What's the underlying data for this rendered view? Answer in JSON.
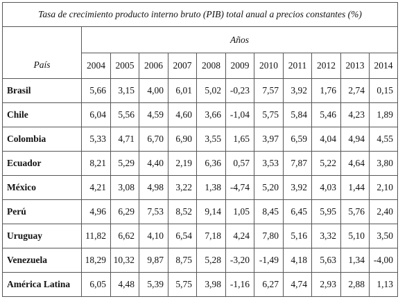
{
  "table": {
    "title": "Tasa de crecimiento producto interno bruto (PIB) total anual a precios constantes (%)",
    "group_header": "Años",
    "row_header": "País",
    "years": [
      "2004",
      "2005",
      "2006",
      "2007",
      "2008",
      "2009",
      "2010",
      "2011",
      "2012",
      "2013",
      "2014"
    ],
    "rows": [
      {
        "country": "Brasil",
        "values": [
          "5,66",
          "3,15",
          "4,00",
          "6,01",
          "5,02",
          "-0,23",
          "7,57",
          "3,92",
          "1,76",
          "2,74",
          "0,15"
        ]
      },
      {
        "country": "Chile",
        "values": [
          "6,04",
          "5,56",
          "4,59",
          "4,60",
          "3,66",
          "-1,04",
          "5,75",
          "5,84",
          "5,46",
          "4,23",
          "1,89"
        ]
      },
      {
        "country": "Colombia",
        "values": [
          "5,33",
          "4,71",
          "6,70",
          "6,90",
          "3,55",
          "1,65",
          "3,97",
          "6,59",
          "4,04",
          "4,94",
          "4,55"
        ]
      },
      {
        "country": "Ecuador",
        "values": [
          "8,21",
          "5,29",
          "4,40",
          "2,19",
          "6,36",
          "0,57",
          "3,53",
          "7,87",
          "5,22",
          "4,64",
          "3,80"
        ]
      },
      {
        "country": "México",
        "values": [
          "4,21",
          "3,08",
          "4,98",
          "3,22",
          "1,38",
          "-4,74",
          "5,20",
          "3,92",
          "4,03",
          "1,44",
          "2,10"
        ]
      },
      {
        "country": "Perú",
        "values": [
          "4,96",
          "6,29",
          "7,53",
          "8,52",
          "9,14",
          "1,05",
          "8,45",
          "6,45",
          "5,95",
          "5,76",
          "2,40"
        ]
      },
      {
        "country": "Uruguay",
        "values": [
          "11,82",
          "6,62",
          "4,10",
          "6,54",
          "7,18",
          "4,24",
          "7,80",
          "5,16",
          "3,32",
          "5,10",
          "3,50"
        ]
      },
      {
        "country": "Venezuela",
        "values": [
          "18,29",
          "10,32",
          "9,87",
          "8,75",
          "5,28",
          "-3,20",
          "-1,49",
          "4,18",
          "5,63",
          "1,34",
          "-4,00"
        ]
      },
      {
        "country": "América Latina",
        "values": [
          "6,05",
          "4,48",
          "5,39",
          "5,75",
          "3,98",
          "-1,16",
          "6,27",
          "4,74",
          "2,93",
          "2,88",
          "1,13"
        ]
      }
    ]
  }
}
